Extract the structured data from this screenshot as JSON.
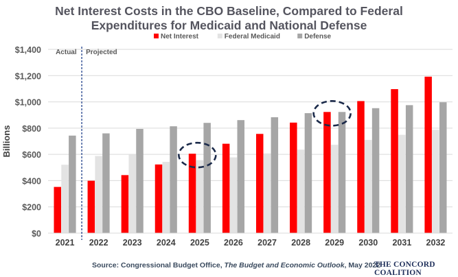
{
  "chart_data": {
    "type": "bar",
    "title_line1": "Net Interest Costs in the CBO Baseline, Compared to Federal",
    "title_line2": "Expenditures for Medicaid and National Defense",
    "ylabel": "Billions",
    "ylim": [
      0,
      1400
    ],
    "yticks": [
      0,
      200,
      400,
      600,
      800,
      1000,
      1200,
      1400
    ],
    "ytick_labels": [
      "$0",
      "$200",
      "$400",
      "$600",
      "$800",
      "$1,000",
      "$1,200",
      "$1,400"
    ],
    "categories": [
      "2021",
      "2022",
      "2023",
      "2024",
      "2025",
      "2026",
      "2027",
      "2028",
      "2029",
      "2030",
      "2031",
      "2032"
    ],
    "series": [
      {
        "name": "Net Interest",
        "color": "#ff0000",
        "values": [
          352,
          399,
          442,
          523,
          605,
          681,
          756,
          842,
          923,
          1006,
          1097,
          1192
        ]
      },
      {
        "name": "Federal Medicaid",
        "color": "#e3e3e3",
        "values": [
          521,
          588,
          599,
          543,
          556,
          577,
          607,
          636,
          673,
          710,
          749,
          787
        ]
      },
      {
        "name": "Defense",
        "color": "#a6a6a6",
        "values": [
          743,
          760,
          794,
          814,
          840,
          861,
          883,
          914,
          923,
          952,
          975,
          997
        ]
      }
    ],
    "actual_label": "Actual",
    "projected_label": "Projected",
    "divider_after_category": "2021",
    "highlighted": [
      {
        "category": "2025",
        "series": "Net Interest"
      },
      {
        "category": "2029",
        "series": "Net Interest"
      }
    ],
    "legend_position": "top-center",
    "grid": true
  },
  "source": {
    "prefix": "Source: Congressional Budget Office, ",
    "publication": "The Budget and Economic Outlook",
    "suffix": ", May 2022"
  },
  "brand": "THE CONCORD COALITION"
}
